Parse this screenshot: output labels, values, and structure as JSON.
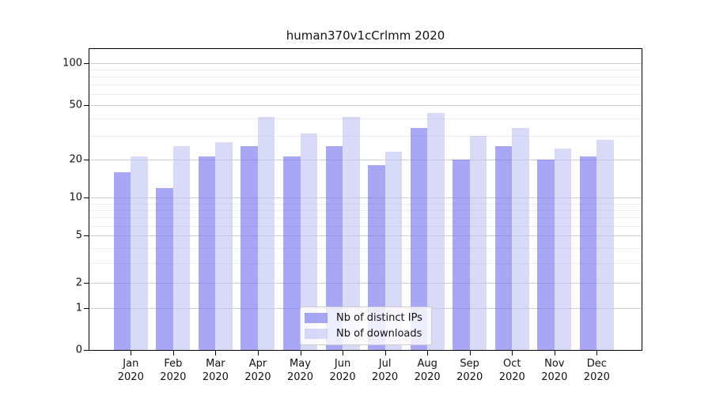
{
  "chart_data": {
    "type": "bar",
    "title": "human370v1cCrlmm 2020",
    "x_categories": [
      "Jan",
      "Feb",
      "Mar",
      "Apr",
      "May",
      "Jun",
      "Jul",
      "Aug",
      "Sep",
      "Oct",
      "Nov",
      "Dec"
    ],
    "x_year_label": "2020",
    "series": [
      {
        "name": "Nb of distinct IPs",
        "color": "#a7a7f3",
        "fill": "rgba(108,108,238,0.6)",
        "values": [
          16,
          12,
          21,
          25,
          21,
          25,
          18,
          34,
          20,
          25,
          20,
          21
        ]
      },
      {
        "name": "Nb of downloads",
        "color": "#d9d9f8",
        "fill": "rgba(192,192,243,0.6)",
        "values": [
          21,
          25,
          27,
          41,
          31,
          41,
          23,
          44,
          30,
          34,
          24,
          28
        ]
      }
    ],
    "y_axis": {
      "scale": "log1p",
      "ticks": [
        0,
        1,
        2,
        5,
        10,
        20,
        50,
        100
      ],
      "minor_gridlines": [
        3,
        4,
        6,
        7,
        8,
        9,
        30,
        40,
        60,
        70,
        80,
        90
      ],
      "range": [
        0,
        128
      ]
    },
    "legend": {
      "position": "lower-center"
    },
    "colors": {
      "major_grid": "#cccccc",
      "minor_grid": "#ececec",
      "axis": "#000000",
      "background": "#ffffff"
    }
  }
}
